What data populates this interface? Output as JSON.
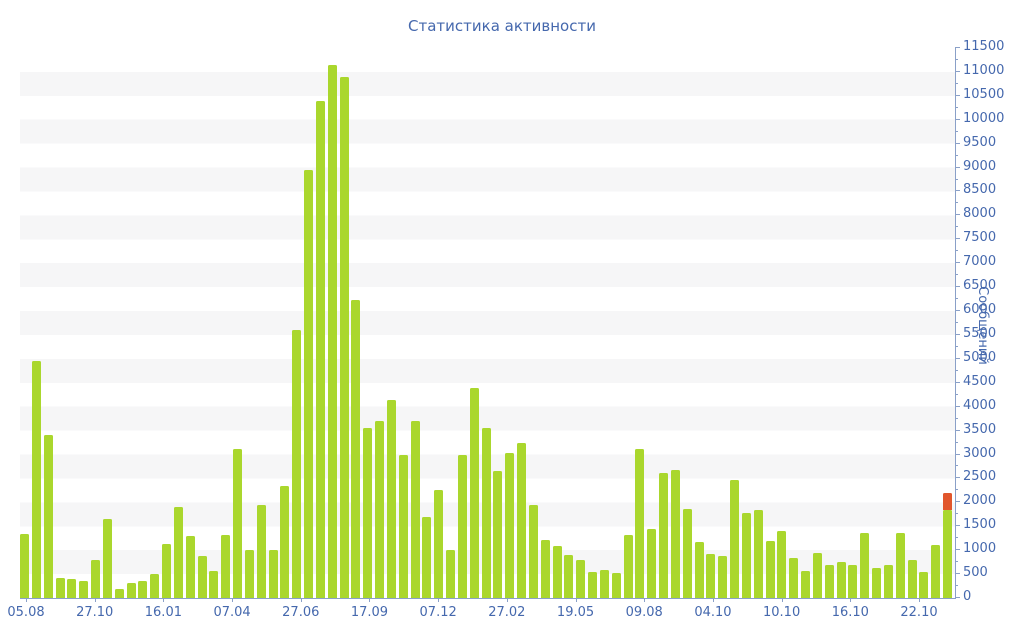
{
  "title": "Статистика активности",
  "colors": {
    "bar_green": "#aad72d",
    "bar_orange": "#e1562c",
    "text_blue": "#4568ad",
    "axis_line": "#8aa0c8",
    "stripe_gray": "#f6f6f7",
    "background": "#ffffff"
  },
  "y_axis": {
    "label": "Сообщений",
    "tick_labels": [
      "0",
      "500",
      "1000",
      "1500",
      "2000",
      "2500",
      "3000",
      "3500",
      "4000",
      "4500",
      "5000",
      "5500",
      "6000",
      "6500",
      "7000",
      "7500",
      "8000",
      "8500",
      "9000",
      "9500",
      "10000",
      "10500",
      "11000",
      "11500"
    ]
  },
  "x_axis": {
    "tick_labels": [
      "05.08",
      "27.10",
      "16.01",
      "07.04",
      "27.06",
      "17.09",
      "07.12",
      "27.02",
      "19.05",
      "09.08",
      "04.10",
      "10.10",
      "16.10",
      "22.10"
    ]
  },
  "chart_data": {
    "type": "bar",
    "title": "Статистика активности",
    "ylabel": "Сообщений",
    "ylim": [
      0,
      11500
    ],
    "y_major_step": 500,
    "y_minor_step": 250,
    "grid": "horizontal striped bands every 500",
    "legend": "none",
    "x_tick_labels": [
      "05.08",
      "27.10",
      "16.01",
      "07.04",
      "27.06",
      "17.09",
      "07.12",
      "27.02",
      "19.05",
      "09.08",
      "04.10",
      "10.10",
      "16.10",
      "22.10"
    ],
    "series_name": "Сообщений",
    "values": [
      1340,
      4950,
      3400,
      420,
      400,
      350,
      800,
      1650,
      180,
      320,
      350,
      500,
      1130,
      1900,
      1300,
      870,
      570,
      1310,
      3120,
      1000,
      1950,
      1000,
      2350,
      5600,
      8950,
      10400,
      11150,
      10900,
      6225,
      3550,
      3700,
      4150,
      3000,
      3700,
      1700,
      2250,
      1000,
      3000,
      4400,
      3550,
      2650,
      3040,
      3250,
      1940,
      1210,
      1080,
      890,
      800,
      550,
      580,
      530,
      1310,
      3120,
      1450,
      2620,
      2670,
      1860,
      1170,
      930,
      870,
      2460,
      1770,
      1830,
      1190,
      1400,
      840,
      570,
      950,
      680,
      760,
      690,
      1350,
      620,
      680,
      1350,
      800,
      550,
      1100,
      1840
    ],
    "stacked_segment": {
      "bar_index": 78,
      "value": 360,
      "color": "#e1562c",
      "total_of_last_bar": 2200
    }
  }
}
